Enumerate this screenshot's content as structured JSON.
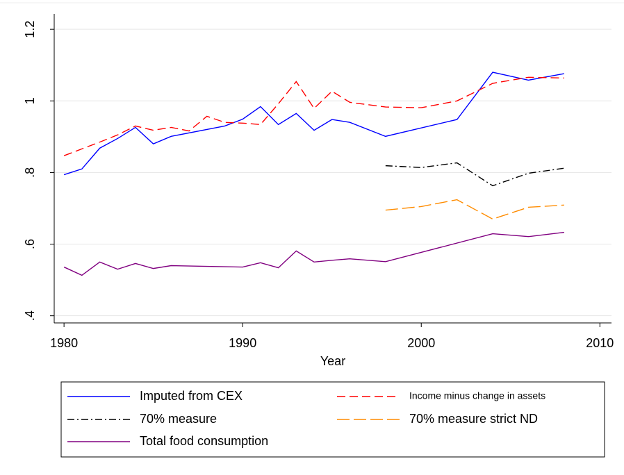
{
  "chart_data": {
    "type": "line",
    "xlabel": "Year",
    "xlim": [
      1979.45,
      2010.65
    ],
    "xticks": [
      1980,
      1990,
      2000,
      2010
    ],
    "ylim": [
      0.38,
      1.243
    ],
    "yticks": [
      {
        "value": 0.4,
        "label": ".4"
      },
      {
        "value": 0.6,
        "label": ".6"
      },
      {
        "value": 0.8,
        "label": ".8"
      },
      1,
      1.2
    ],
    "grid": true,
    "series": [
      {
        "name": "Imputed from CEX",
        "color": "#0000ff",
        "dash": "none",
        "x": [
          1980,
          1981,
          1982,
          1983,
          1984,
          1985,
          1986,
          1989,
          1990,
          1991,
          1992,
          1993,
          1994,
          1995,
          1996,
          1998,
          2002,
          2004,
          2006,
          2008
        ],
        "values": [
          0.794,
          0.81,
          0.868,
          0.895,
          0.926,
          0.88,
          0.901,
          0.93,
          0.949,
          0.984,
          0.934,
          0.965,
          0.918,
          0.948,
          0.94,
          0.901,
          0.948,
          1.08,
          1.058,
          1.076
        ]
      },
      {
        "name": "Income minus change in assets",
        "color": "#ff0000",
        "dash": "12 6",
        "x": [
          1980,
          1981,
          1982,
          1983,
          1984,
          1985,
          1986,
          1987,
          1988,
          1989,
          1990,
          1991,
          1992,
          1993,
          1994,
          1995,
          1996,
          1998,
          2000,
          2002,
          2004,
          2006,
          2008
        ],
        "values": [
          0.847,
          0.866,
          0.885,
          0.905,
          0.93,
          0.918,
          0.926,
          0.916,
          0.957,
          0.94,
          0.938,
          0.934,
          0.992,
          1.054,
          0.979,
          1.027,
          0.996,
          0.983,
          0.981,
          1.0,
          1.049,
          1.066,
          1.064
        ]
      },
      {
        "name": "70% measure",
        "color": "#000000",
        "dash": "10 4 2 4",
        "x": [
          1998,
          2000,
          2002,
          2004,
          2006,
          2008
        ],
        "values": [
          0.819,
          0.814,
          0.827,
          0.763,
          0.798,
          0.812
        ]
      },
      {
        "name": "70% measure strict ND",
        "color": "#ff8c00",
        "dash": "18 6",
        "x": [
          1998,
          2000,
          2002,
          2004,
          2006,
          2008
        ],
        "values": [
          0.695,
          0.705,
          0.724,
          0.67,
          0.703,
          0.709
        ]
      },
      {
        "name": "Total food consumption",
        "color": "#800080",
        "dash": "none",
        "x": [
          1980,
          1981,
          1982,
          1983,
          1984,
          1985,
          1986,
          1990,
          1991,
          1992,
          1993,
          1994,
          1995,
          1996,
          1998,
          2004,
          2006,
          2008
        ],
        "values": [
          0.536,
          0.513,
          0.55,
          0.53,
          0.546,
          0.532,
          0.54,
          0.536,
          0.548,
          0.534,
          0.581,
          0.55,
          0.555,
          0.559,
          0.551,
          0.629,
          0.621,
          0.633
        ]
      }
    ]
  }
}
